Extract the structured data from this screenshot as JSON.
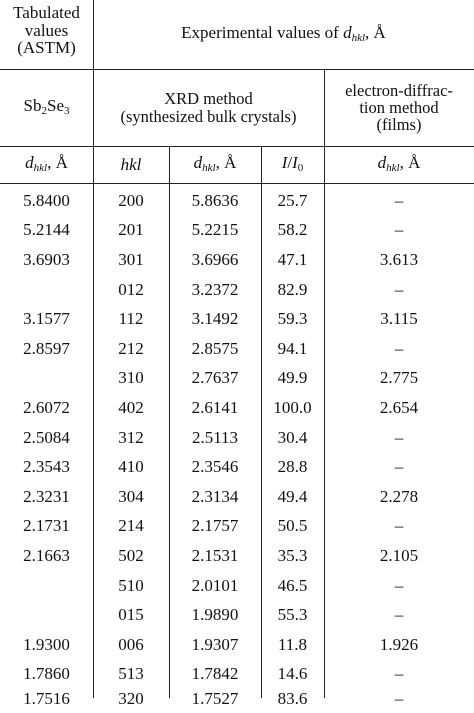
{
  "header": {
    "tabulated_label": "Tabulated values (ASTM)",
    "experimental_label_prefix": "Experimental values of",
    "experimental_label_symbol": "d",
    "experimental_label_subscript": "hkl",
    "experimental_label_unit": ", Å",
    "compound_base1": "Sb",
    "compound_sub1": "2",
    "compound_base2": "Se",
    "compound_sub2": "3",
    "xrd_method_line1": "XRD method",
    "xrd_method_line2": "(synthesized bulk crystals)",
    "electron_method_line1": "electron-diffrac-",
    "electron_method_line2": "tion method",
    "electron_method_line3": "(films)",
    "col_dhkl_symbol": "d",
    "col_dhkl_subscript": "hkl",
    "col_dhkl_unit": ", Å",
    "col_hkl": "hkl",
    "col_intensity_num": "I",
    "col_intensity_sep": "/",
    "col_intensity_den": "I",
    "col_intensity_den_sub": "0"
  },
  "rows": [
    {
      "astm": "5.8400",
      "hkl": "200",
      "dxrd": "5.8636",
      "int": "25.7",
      "ed": "–"
    },
    {
      "astm": "5.2144",
      "hkl": "201",
      "dxrd": "5.2215",
      "int": "58.2",
      "ed": "–"
    },
    {
      "astm": "3.6903",
      "hkl": "301",
      "dxrd": "3.6966",
      "int": "47.1",
      "ed": "3.613"
    },
    {
      "astm": "",
      "hkl": "012",
      "dxrd": "3.2372",
      "int": "82.9",
      "ed": "–"
    },
    {
      "astm": "3.1577",
      "hkl": "112",
      "dxrd": "3.1492",
      "int": "59.3",
      "ed": "3.115"
    },
    {
      "astm": "2.8597",
      "hkl": "212",
      "dxrd": "2.8575",
      "int": "94.1",
      "ed": "–"
    },
    {
      "astm": "",
      "hkl": "310",
      "dxrd": "2.7637",
      "int": "49.9",
      "ed": "2.775"
    },
    {
      "astm": "2.6072",
      "hkl": "402",
      "dxrd": "2.6141",
      "int": "100.0",
      "ed": "2.654"
    },
    {
      "astm": "2.5084",
      "hkl": "312",
      "dxrd": "2.5113",
      "int": "30.4",
      "ed": "–"
    },
    {
      "astm": "2.3543",
      "hkl": "410",
      "dxrd": "2.3546",
      "int": "28.8",
      "ed": "–"
    },
    {
      "astm": "2.3231",
      "hkl": "304",
      "dxrd": "2.3134",
      "int": "49.4",
      "ed": "2.278"
    },
    {
      "astm": "2.1731",
      "hkl": "214",
      "dxrd": "2.1757",
      "int": "50.5",
      "ed": "–"
    },
    {
      "astm": "2.1663",
      "hkl": "502",
      "dxrd": "2.1531",
      "int": "35.3",
      "ed": "2.105"
    },
    {
      "astm": "",
      "hkl": "510",
      "dxrd": "2.0101",
      "int": "46.5",
      "ed": "–"
    },
    {
      "astm": "",
      "hkl": "015",
      "dxrd": "1.9890",
      "int": "55.3",
      "ed": "–"
    },
    {
      "astm": "1.9300",
      "hkl": "006",
      "dxrd": "1.9307",
      "int": "11.8",
      "ed": "1.926"
    },
    {
      "astm": "1.7860",
      "hkl": "513",
      "dxrd": "1.7842",
      "int": "14.6",
      "ed": "–"
    },
    {
      "astm": "1.7516",
      "hkl": "320",
      "dxrd": "1.7527",
      "int": "83.6",
      "ed": "–"
    }
  ]
}
